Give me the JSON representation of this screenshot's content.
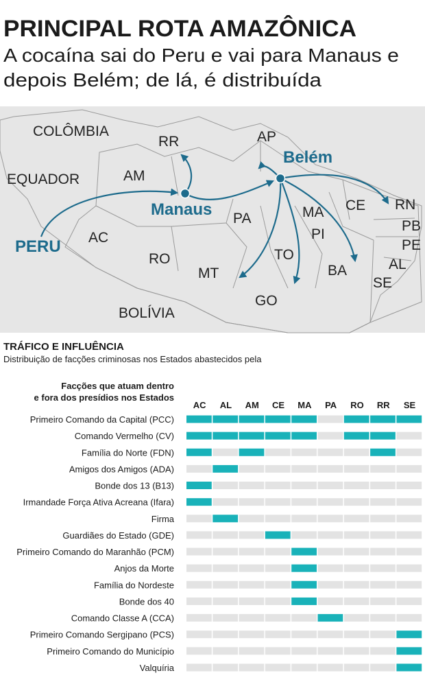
{
  "header": {
    "title": "PRINCIPAL ROTA AMAZÔNICA",
    "subtitle_lines": [
      "A cocaína sai do Peru e vai para Manaus e",
      "depois Belém; de lá, é distribuída"
    ]
  },
  "map": {
    "countries": [
      "COLÔMBIA",
      "EQUADOR",
      "BOLÍVIA"
    ],
    "states": [
      "RR",
      "AP",
      "AM",
      "PA",
      "MA",
      "CE",
      "RN",
      "PB",
      "PE",
      "PI",
      "AC",
      "RO",
      "TO",
      "AL",
      "BA",
      "MT",
      "SE",
      "GO"
    ],
    "cities": [
      "Belém",
      "Manaus",
      "PERU"
    ],
    "route_color": "#1d6b8c"
  },
  "table": {
    "title": "TRÁFICO E INFLUÊNCIA",
    "description": "Distribuição de facções criminosas nos Estados abastecidos pela",
    "row_header_lines": [
      "Facções que atuam dentro",
      "e fora dos presídios nos Estados"
    ],
    "columns": [
      "AC",
      "AL",
      "AM",
      "CE",
      "MA",
      "PA",
      "RO",
      "RR",
      "SE"
    ],
    "present_color": "#19b2b9",
    "absent_color": "#e3e3e3",
    "rows": [
      {
        "name": "Primeiro Comando da Capital (PCC)",
        "cells": [
          1,
          1,
          1,
          1,
          1,
          0,
          1,
          1,
          1
        ]
      },
      {
        "name": "Comando Vermelho (CV)",
        "cells": [
          1,
          1,
          1,
          1,
          1,
          0,
          1,
          1,
          0
        ]
      },
      {
        "name": "Família do Norte (FDN)",
        "cells": [
          1,
          0,
          1,
          0,
          0,
          0,
          0,
          1,
          0
        ]
      },
      {
        "name": "Amigos dos Amigos (ADA)",
        "cells": [
          0,
          1,
          0,
          0,
          0,
          0,
          0,
          0,
          0
        ]
      },
      {
        "name": "Bonde dos 13 (B13)",
        "cells": [
          1,
          0,
          0,
          0,
          0,
          0,
          0,
          0,
          0
        ]
      },
      {
        "name": "Irmandade Força Ativa Acreana (Ifara)",
        "cells": [
          1,
          0,
          0,
          0,
          0,
          0,
          0,
          0,
          0
        ]
      },
      {
        "name": "Firma",
        "cells": [
          0,
          1,
          0,
          0,
          0,
          0,
          0,
          0,
          0
        ]
      },
      {
        "name": "Guardiães do Estado (GDE)",
        "cells": [
          0,
          0,
          0,
          1,
          0,
          0,
          0,
          0,
          0
        ]
      },
      {
        "name": "Primeiro Comando do Maranhão (PCM)",
        "cells": [
          0,
          0,
          0,
          0,
          1,
          0,
          0,
          0,
          0
        ]
      },
      {
        "name": "Anjos da Morte",
        "cells": [
          0,
          0,
          0,
          0,
          1,
          0,
          0,
          0,
          0
        ]
      },
      {
        "name": "Família do Nordeste",
        "cells": [
          0,
          0,
          0,
          0,
          1,
          0,
          0,
          0,
          0
        ]
      },
      {
        "name": "Bonde dos 40",
        "cells": [
          0,
          0,
          0,
          0,
          1,
          0,
          0,
          0,
          0
        ]
      },
      {
        "name": "Comando Classe A (CCA)",
        "cells": [
          0,
          0,
          0,
          0,
          0,
          1,
          0,
          0,
          0
        ]
      },
      {
        "name": "Primeiro Comando Sergipano (PCS)",
        "cells": [
          0,
          0,
          0,
          0,
          0,
          0,
          0,
          0,
          1
        ]
      },
      {
        "name": "Primeiro Comando do Município",
        "cells": [
          0,
          0,
          0,
          0,
          0,
          0,
          0,
          0,
          1
        ]
      },
      {
        "name": "Valquíria",
        "cells": [
          0,
          0,
          0,
          0,
          0,
          0,
          0,
          0,
          1
        ]
      }
    ]
  }
}
